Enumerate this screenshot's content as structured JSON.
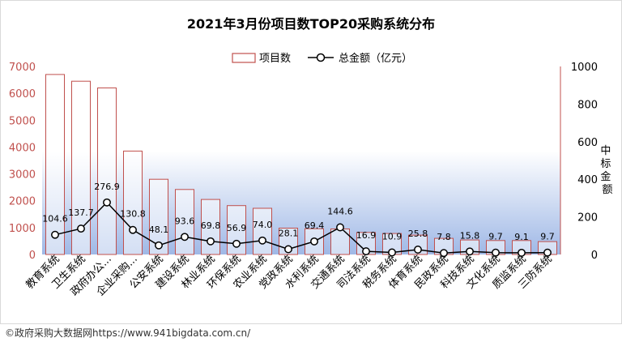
{
  "chart_data": {
    "type": "bar",
    "title": "2021年3月份项目数TOP20采购系统分布",
    "categories": [
      "教育系统",
      "卫生系统",
      "政府办公...",
      "企业采购...",
      "公安系统",
      "建设系统",
      "林业系统",
      "环保系统",
      "农业系统",
      "党政系统",
      "水利系统",
      "交通系统",
      "司法系统",
      "税务系统",
      "体育系统",
      "民政系统",
      "科技系统",
      "文化系统",
      "质监系统",
      "三防系统"
    ],
    "series": [
      {
        "name": "项目数",
        "type": "bar",
        "axis": "left",
        "color": "#c0504d",
        "values": [
          6700,
          6450,
          6200,
          3850,
          2800,
          2420,
          2050,
          1820,
          1720,
          980,
          960,
          950,
          820,
          780,
          720,
          600,
          540,
          520,
          520,
          480
        ]
      },
      {
        "name": "总金额（亿元）",
        "type": "line",
        "axis": "right",
        "color": "#000000",
        "values": [
          104.6,
          137.7,
          276.9,
          130.8,
          48.1,
          93.6,
          69.8,
          56.9,
          74.0,
          28.1,
          69.4,
          144.6,
          16.9,
          10.9,
          25.8,
          7.8,
          15.8,
          9.7,
          9.1,
          9.7
        ],
        "labels": [
          "104.6",
          "137.7",
          "276.9",
          "130.8",
          "48.1",
          "93.6",
          "69.8",
          "56.9",
          "74.0",
          "28.1",
          "69.4",
          "144.6",
          "16.9",
          "10.9",
          "25.8",
          "7.8",
          "15.8",
          "9.7",
          "9.1",
          "9.7"
        ]
      }
    ],
    "y_left": {
      "min": 0,
      "max": 7000,
      "ticks": [
        "0",
        "1000",
        "2000",
        "3000",
        "4000",
        "5000",
        "6000",
        "7000"
      ],
      "color": "#c0504d"
    },
    "y_right": {
      "min": 0,
      "max": 1000,
      "ticks": [
        "0",
        "200",
        "400",
        "600",
        "800",
        "1000"
      ],
      "label": "中标金额"
    },
    "legend_position": "top-center",
    "grid": false
  },
  "footer": {
    "text": "©政府采购大数据网https://www.941bigdata.com.cn/"
  }
}
